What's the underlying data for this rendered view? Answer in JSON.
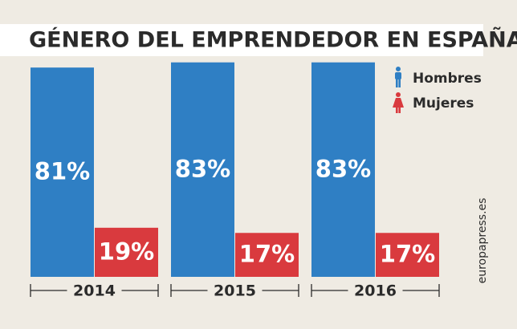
{
  "chart_data": {
    "type": "bar",
    "title": "GÉNERO DEL EMPRENDEDOR EN ESPAÑA",
    "categories": [
      "2014",
      "2015",
      "2016"
    ],
    "series": [
      {
        "name": "Hombres",
        "color": "#2f7fc4",
        "values": [
          81,
          83,
          83
        ],
        "value_labels": [
          "81%",
          "83%",
          "83%"
        ]
      },
      {
        "name": "Mujeres",
        "color": "#d93a3e",
        "values": [
          19,
          17,
          17
        ],
        "value_labels": [
          "19%",
          "17%",
          "17%"
        ]
      }
    ],
    "legend": "top-right",
    "watermark": "europapress.es"
  }
}
